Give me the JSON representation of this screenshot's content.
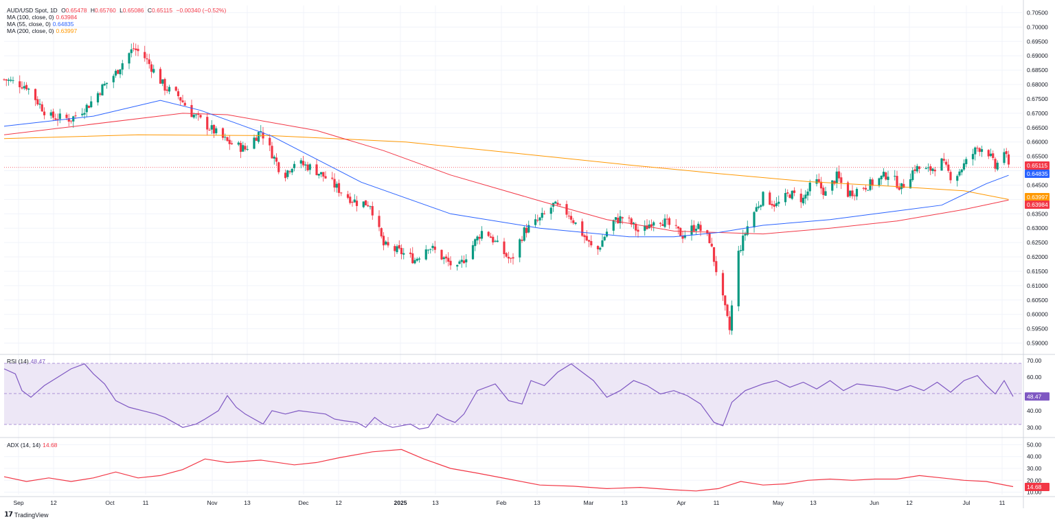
{
  "header": {
    "symbol": "AUD/USD Spot, 1D",
    "open_label": "O",
    "open": "0.65478",
    "high_label": "H",
    "high": "0.65760",
    "low_label": "L",
    "low": "0.65086",
    "close_label": "C",
    "close": "0.65115",
    "change": "−0.00340 (−0.52%)"
  },
  "ma_legend": [
    {
      "label": "MA (100, close, 0)",
      "value": "0.63984",
      "color": "#f23645"
    },
    {
      "label": "MA (55, close, 0)",
      "value": "0.64835",
      "color": "#2962ff"
    },
    {
      "label": "MA (200, close, 0)",
      "value": "0.63997",
      "color": "#ff9800"
    }
  ],
  "rsi_legend": {
    "label": "RSI (14)",
    "value": "48.47",
    "color": "#7e57c2"
  },
  "adx_legend": {
    "label": "ADX (14, 14)",
    "value": "14.68",
    "color": "#f23645"
  },
  "branding": "TradingView",
  "colors": {
    "up": "#089981",
    "down": "#f23645",
    "ma100": "#f23645",
    "ma55": "#2962ff",
    "ma200": "#ff9800",
    "rsi": "#7e57c2",
    "adx": "#f23645",
    "rsi_band": "#ede7f6"
  },
  "chart_data": [
    {
      "type": "candlestick",
      "title": "AUD/USD Spot, 1D",
      "y_ticks": [
        "0.70500",
        "0.70000",
        "0.69500",
        "0.69000",
        "0.68500",
        "0.68000",
        "0.67500",
        "0.67000",
        "0.66500",
        "0.66000",
        "0.65500",
        "0.65000",
        "0.64500",
        "0.64000",
        "0.63500",
        "0.63000",
        "0.62500",
        "0.62000",
        "0.61500",
        "0.61000",
        "0.60500",
        "0.60000",
        "0.59500",
        "0.59000"
      ],
      "ylim": [
        0.5875,
        0.7075
      ],
      "x_ticks": [
        "Sep",
        "12",
        "Oct",
        "11",
        "Nov",
        "13",
        "Dec",
        "12",
        "2025",
        "13",
        "Feb",
        "13",
        "Mar",
        "13",
        "Apr",
        "11",
        "May",
        "13",
        "Jun",
        "12",
        "Jul",
        "11"
      ],
      "current_price": 0.65115,
      "price_tags": [
        {
          "value": "0.65115",
          "color": "#f23645"
        },
        {
          "value": "0.64835",
          "color": "#2962ff"
        },
        {
          "value": "0.63997",
          "color": "#ff9800"
        },
        {
          "value": "0.63984",
          "color": "#f23645"
        }
      ],
      "close_path": [
        [
          0,
          0.6818
        ],
        [
          10,
          0.6795
        ],
        [
          15,
          0.674
        ],
        [
          20,
          0.6688
        ],
        [
          30,
          0.668
        ],
        [
          38,
          0.673
        ],
        [
          44,
          0.679
        ],
        [
          50,
          0.684
        ],
        [
          55,
          0.69
        ],
        [
          58,
          0.6925
        ],
        [
          62,
          0.6905
        ],
        [
          66,
          0.686
        ],
        [
          72,
          0.679
        ],
        [
          78,
          0.676
        ],
        [
          84,
          0.67
        ],
        [
          92,
          0.665
        ],
        [
          100,
          0.66
        ],
        [
          108,
          0.6575
        ],
        [
          115,
          0.664
        ],
        [
          120,
          0.656
        ],
        [
          125,
          0.648
        ],
        [
          130,
          0.653
        ],
        [
          138,
          0.651
        ],
        [
          145,
          0.647
        ],
        [
          152,
          0.642
        ],
        [
          158,
          0.639
        ],
        [
          164,
          0.6385
        ],
        [
          170,
          0.624
        ],
        [
          178,
          0.6215
        ],
        [
          184,
          0.619
        ],
        [
          190,
          0.624
        ],
        [
          196,
          0.62
        ],
        [
          203,
          0.6155
        ],
        [
          209,
          0.623
        ],
        [
          215,
          0.63
        ],
        [
          221,
          0.624
        ],
        [
          227,
          0.6185
        ],
        [
          233,
          0.629
        ],
        [
          240,
          0.633
        ],
        [
          246,
          0.638
        ],
        [
          253,
          0.635
        ],
        [
          260,
          0.627
        ],
        [
          265,
          0.621
        ],
        [
          272,
          0.632
        ],
        [
          278,
          0.634
        ],
        [
          285,
          0.628
        ],
        [
          292,
          0.634
        ],
        [
          298,
          0.631
        ],
        [
          304,
          0.6275
        ],
        [
          310,
          0.631
        ],
        [
          316,
          0.626
        ],
        [
          322,
          0.605
        ],
        [
          325,
          0.5945
        ],
        [
          328,
          0.619
        ],
        [
          334,
          0.633
        ],
        [
          340,
          0.641
        ],
        [
          346,
          0.638
        ],
        [
          352,
          0.642
        ],
        [
          358,
          0.64
        ],
        [
          363,
          0.647
        ],
        [
          368,
          0.642
        ],
        [
          373,
          0.648
        ],
        [
          378,
          0.642
        ],
        [
          384,
          0.644
        ],
        [
          390,
          0.646
        ],
        [
          396,
          0.649
        ],
        [
          402,
          0.644
        ],
        [
          408,
          0.651
        ],
        [
          414,
          0.65
        ],
        [
          420,
          0.653
        ],
        [
          425,
          0.647
        ],
        [
          430,
          0.652
        ],
        [
          436,
          0.658
        ],
        [
          440,
          0.658
        ],
        [
          444,
          0.651
        ],
        [
          448,
          0.657
        ],
        [
          450,
          0.6512
        ]
      ],
      "ma55": [
        [
          0,
          0.6655
        ],
        [
          40,
          0.669
        ],
        [
          70,
          0.6745
        ],
        [
          88,
          0.671
        ],
        [
          120,
          0.662
        ],
        [
          160,
          0.646
        ],
        [
          200,
          0.635
        ],
        [
          240,
          0.63
        ],
        [
          280,
          0.627
        ],
        [
          300,
          0.627
        ],
        [
          320,
          0.6285
        ],
        [
          340,
          0.631
        ],
        [
          370,
          0.633
        ],
        [
          400,
          0.636
        ],
        [
          420,
          0.638
        ],
        [
          440,
          0.6455
        ],
        [
          450,
          0.6484
        ]
      ],
      "ma100": [
        [
          0,
          0.6625
        ],
        [
          80,
          0.67
        ],
        [
          100,
          0.6695
        ],
        [
          140,
          0.664
        ],
        [
          170,
          0.657
        ],
        [
          200,
          0.6485
        ],
        [
          240,
          0.6395
        ],
        [
          270,
          0.633
        ],
        [
          300,
          0.629
        ],
        [
          340,
          0.628
        ],
        [
          370,
          0.63
        ],
        [
          400,
          0.6325
        ],
        [
          430,
          0.6365
        ],
        [
          450,
          0.6398
        ]
      ],
      "ma200": [
        [
          0,
          0.6612
        ],
        [
          60,
          0.6625
        ],
        [
          120,
          0.6622
        ],
        [
          180,
          0.66
        ],
        [
          230,
          0.656
        ],
        [
          280,
          0.652
        ],
        [
          320,
          0.649
        ],
        [
          360,
          0.6462
        ],
        [
          400,
          0.6445
        ],
        [
          430,
          0.643
        ],
        [
          450,
          0.64
        ]
      ]
    },
    {
      "type": "line",
      "title": "RSI (14)",
      "y_ticks": [
        "70.00",
        "60.00",
        "40.00",
        "30.00"
      ],
      "ylim": [
        26,
        72
      ],
      "band": [
        30,
        70
      ],
      "midline": 50,
      "last_value": 48.47,
      "values": [
        [
          0,
          65
        ],
        [
          5,
          62
        ],
        [
          8,
          52
        ],
        [
          12,
          48
        ],
        [
          18,
          55
        ],
        [
          24,
          60
        ],
        [
          30,
          65
        ],
        [
          36,
          68
        ],
        [
          40,
          62
        ],
        [
          45,
          56
        ],
        [
          50,
          46
        ],
        [
          56,
          42
        ],
        [
          62,
          40
        ],
        [
          68,
          38
        ],
        [
          72,
          36
        ],
        [
          76,
          33
        ],
        [
          80,
          30
        ],
        [
          86,
          32
        ],
        [
          90,
          35
        ],
        [
          96,
          40
        ],
        [
          100,
          49
        ],
        [
          104,
          42
        ],
        [
          108,
          38
        ],
        [
          112,
          35
        ],
        [
          116,
          32
        ],
        [
          120,
          40
        ],
        [
          126,
          38
        ],
        [
          132,
          40
        ],
        [
          138,
          39
        ],
        [
          144,
          38
        ],
        [
          148,
          35
        ],
        [
          152,
          34
        ],
        [
          158,
          33
        ],
        [
          162,
          30
        ],
        [
          166,
          36
        ],
        [
          170,
          32
        ],
        [
          174,
          30
        ],
        [
          178,
          31
        ],
        [
          182,
          32
        ],
        [
          186,
          29
        ],
        [
          190,
          30
        ],
        [
          194,
          38
        ],
        [
          198,
          35
        ],
        [
          202,
          33
        ],
        [
          206,
          38
        ],
        [
          212,
          52
        ],
        [
          220,
          56
        ],
        [
          226,
          46
        ],
        [
          232,
          44
        ],
        [
          236,
          58
        ],
        [
          242,
          55
        ],
        [
          248,
          63
        ],
        [
          254,
          68
        ],
        [
          258,
          64
        ],
        [
          264,
          58
        ],
        [
          270,
          48
        ],
        [
          276,
          52
        ],
        [
          282,
          58
        ],
        [
          288,
          55
        ],
        [
          294,
          50
        ],
        [
          300,
          52
        ],
        [
          306,
          49
        ],
        [
          312,
          44
        ],
        [
          318,
          33
        ],
        [
          322,
          31
        ],
        [
          326,
          45
        ],
        [
          332,
          52
        ],
        [
          340,
          56
        ],
        [
          346,
          58
        ],
        [
          352,
          54
        ],
        [
          358,
          57
        ],
        [
          364,
          53
        ],
        [
          370,
          58
        ],
        [
          376,
          52
        ],
        [
          382,
          56
        ],
        [
          388,
          55
        ],
        [
          394,
          54
        ],
        [
          400,
          52
        ],
        [
          406,
          55
        ],
        [
          412,
          52
        ],
        [
          418,
          57
        ],
        [
          424,
          51
        ],
        [
          430,
          58
        ],
        [
          436,
          61
        ],
        [
          440,
          55
        ],
        [
          444,
          50
        ],
        [
          448,
          58
        ],
        [
          452,
          48.47
        ]
      ]
    },
    {
      "type": "line",
      "title": "ADX (14, 14)",
      "y_ticks": [
        "50.00",
        "40.00",
        "30.00",
        "20.00",
        "10.00"
      ],
      "ylim": [
        8,
        52
      ],
      "last_value": 14.68,
      "values": [
        [
          0,
          23
        ],
        [
          10,
          19
        ],
        [
          20,
          22
        ],
        [
          30,
          19
        ],
        [
          40,
          22
        ],
        [
          50,
          27
        ],
        [
          60,
          22
        ],
        [
          70,
          24
        ],
        [
          80,
          29
        ],
        [
          90,
          38
        ],
        [
          100,
          35
        ],
        [
          115,
          37
        ],
        [
          130,
          33
        ],
        [
          140,
          35
        ],
        [
          150,
          39
        ],
        [
          165,
          44
        ],
        [
          178,
          46
        ],
        [
          188,
          38
        ],
        [
          200,
          30
        ],
        [
          212,
          26
        ],
        [
          226,
          21
        ],
        [
          240,
          16
        ],
        [
          255,
          15
        ],
        [
          270,
          13
        ],
        [
          285,
          14
        ],
        [
          300,
          12
        ],
        [
          310,
          11
        ],
        [
          320,
          13
        ],
        [
          330,
          19
        ],
        [
          340,
          16
        ],
        [
          350,
          17
        ],
        [
          360,
          20
        ],
        [
          370,
          21
        ],
        [
          380,
          20
        ],
        [
          390,
          21
        ],
        [
          400,
          21
        ],
        [
          410,
          24
        ],
        [
          420,
          22
        ],
        [
          430,
          20
        ],
        [
          440,
          19
        ],
        [
          452,
          14.68
        ]
      ]
    }
  ]
}
